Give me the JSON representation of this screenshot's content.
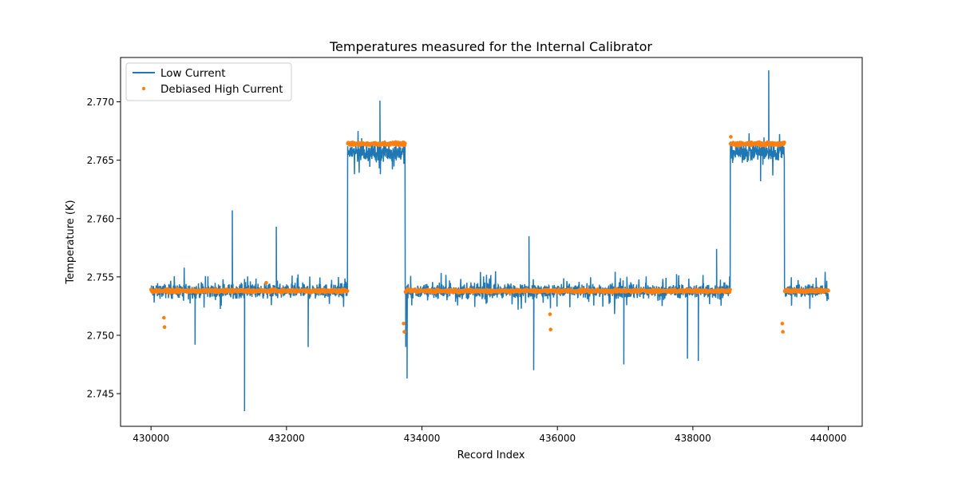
{
  "chart_data": {
    "type": "line",
    "title": "Temperatures measured for the Internal Calibrator",
    "xlabel": "Record Index",
    "ylabel": "Temperature (K)",
    "xlim": [
      429550,
      440500
    ],
    "ylim": [
      2.7422,
      2.7738
    ],
    "xticks": [
      430000,
      432000,
      434000,
      436000,
      438000,
      440000
    ],
    "xtick_labels": [
      "430000",
      "432000",
      "434000",
      "436000",
      "438000",
      "440000"
    ],
    "yticks": [
      2.745,
      2.75,
      2.755,
      2.76,
      2.765,
      2.77
    ],
    "ytick_labels": [
      "2.745",
      "2.750",
      "2.755",
      "2.760",
      "2.765",
      "2.770"
    ],
    "grid": false,
    "legend_position": "upper-left",
    "colors": {
      "low_current": "#1f77b4",
      "high_current": "#ff7f0e"
    },
    "series": [
      {
        "name": "Low Current",
        "style": "line",
        "segments": [
          {
            "x_start": 430000,
            "x_end": 432900,
            "level": 2.7538,
            "noise": 0.0009
          },
          {
            "x_start": 432900,
            "x_end": 433750,
            "level": 2.7657,
            "noise": 0.0012
          },
          {
            "x_start": 433750,
            "x_end": 438550,
            "level": 2.7538,
            "noise": 0.0009
          },
          {
            "x_start": 438550,
            "x_end": 439350,
            "level": 2.7657,
            "noise": 0.0012
          },
          {
            "x_start": 439350,
            "x_end": 440000,
            "level": 2.7538,
            "noise": 0.0009
          }
        ],
        "spikes": [
          {
            "x": 431200,
            "y": 2.7607
          },
          {
            "x": 431380,
            "y": 2.7435
          },
          {
            "x": 431850,
            "y": 2.7593
          },
          {
            "x": 430650,
            "y": 2.7492
          },
          {
            "x": 432320,
            "y": 2.749
          },
          {
            "x": 433380,
            "y": 2.7701
          },
          {
            "x": 433780,
            "y": 2.7463
          },
          {
            "x": 433760,
            "y": 2.749
          },
          {
            "x": 435580,
            "y": 2.7585
          },
          {
            "x": 435650,
            "y": 2.747
          },
          {
            "x": 436980,
            "y": 2.7475
          },
          {
            "x": 437920,
            "y": 2.748
          },
          {
            "x": 438080,
            "y": 2.7478
          },
          {
            "x": 438350,
            "y": 2.7574
          },
          {
            "x": 439120,
            "y": 2.7727
          },
          {
            "x": 439000,
            "y": 2.7632
          }
        ]
      },
      {
        "name": "Debiased High Current",
        "style": "scatter",
        "segments": [
          {
            "x_start": 430000,
            "x_end": 432900,
            "level": 2.7538
          },
          {
            "x_start": 432900,
            "x_end": 433750,
            "level": 2.7664
          },
          {
            "x_start": 433750,
            "x_end": 438550,
            "level": 2.7538
          },
          {
            "x_start": 438550,
            "x_end": 439350,
            "level": 2.7664
          },
          {
            "x_start": 439350,
            "x_end": 440000,
            "level": 2.7538
          }
        ],
        "outliers": [
          {
            "x": 430200,
            "y": 2.7507
          },
          {
            "x": 430190,
            "y": 2.7515
          },
          {
            "x": 433740,
            "y": 2.7503
          },
          {
            "x": 433730,
            "y": 2.751
          },
          {
            "x": 435900,
            "y": 2.7505
          },
          {
            "x": 435890,
            "y": 2.7518
          },
          {
            "x": 439330,
            "y": 2.7503
          },
          {
            "x": 439320,
            "y": 2.751
          },
          {
            "x": 438560,
            "y": 2.767
          },
          {
            "x": 431700,
            "y": 2.7545
          }
        ]
      }
    ]
  }
}
